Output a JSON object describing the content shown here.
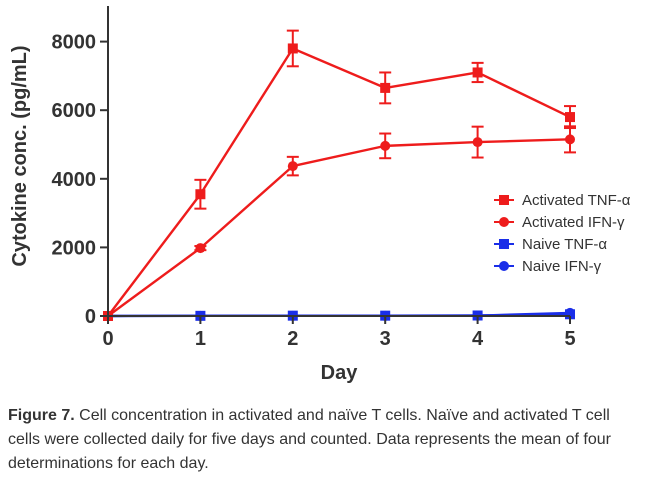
{
  "chart_data": {
    "type": "line",
    "xlabel": "Day",
    "ylabel": "Cytokine conc. (pg/mL)",
    "x": [
      0,
      1,
      2,
      3,
      4,
      5
    ],
    "xticks": [
      "0",
      "1",
      "2",
      "3",
      "4",
      "5"
    ],
    "ylim": [
      0,
      9000
    ],
    "yticks": [
      0,
      2000,
      4000,
      6000,
      8000
    ],
    "ytick_labels": [
      "0",
      "2000",
      "4000",
      "6000",
      "8000"
    ],
    "legend_position": "right",
    "series": [
      {
        "name": "Activated TNF-α",
        "color": "#ee1c1c",
        "marker": "square",
        "values": [
          0,
          3550,
          7800,
          6650,
          7100,
          5800
        ],
        "errors": [
          0,
          420,
          520,
          450,
          280,
          320
        ]
      },
      {
        "name": "Activated IFN-γ",
        "color": "#ee1c1c",
        "marker": "circle",
        "values": [
          0,
          1980,
          4370,
          4960,
          5070,
          5150
        ],
        "errors": [
          0,
          60,
          270,
          360,
          450,
          380
        ]
      },
      {
        "name": "Naive TNF-α",
        "color": "#1a2ee8",
        "marker": "square",
        "values": [
          0,
          5,
          10,
          10,
          15,
          50
        ],
        "errors": [
          0,
          0,
          0,
          0,
          0,
          0
        ]
      },
      {
        "name": "Naive IFN-γ",
        "color": "#1a2ee8",
        "marker": "circle",
        "values": [
          0,
          5,
          5,
          5,
          10,
          90
        ],
        "errors": [
          0,
          0,
          0,
          0,
          0,
          0
        ]
      }
    ]
  },
  "caption": {
    "label": "Figure 7.",
    "text": " Cell concentration in activated and naïve T cells. Naïve and activated T cell cells were collected daily for five days and counted. Data represents the mean of four determinations for each day."
  }
}
